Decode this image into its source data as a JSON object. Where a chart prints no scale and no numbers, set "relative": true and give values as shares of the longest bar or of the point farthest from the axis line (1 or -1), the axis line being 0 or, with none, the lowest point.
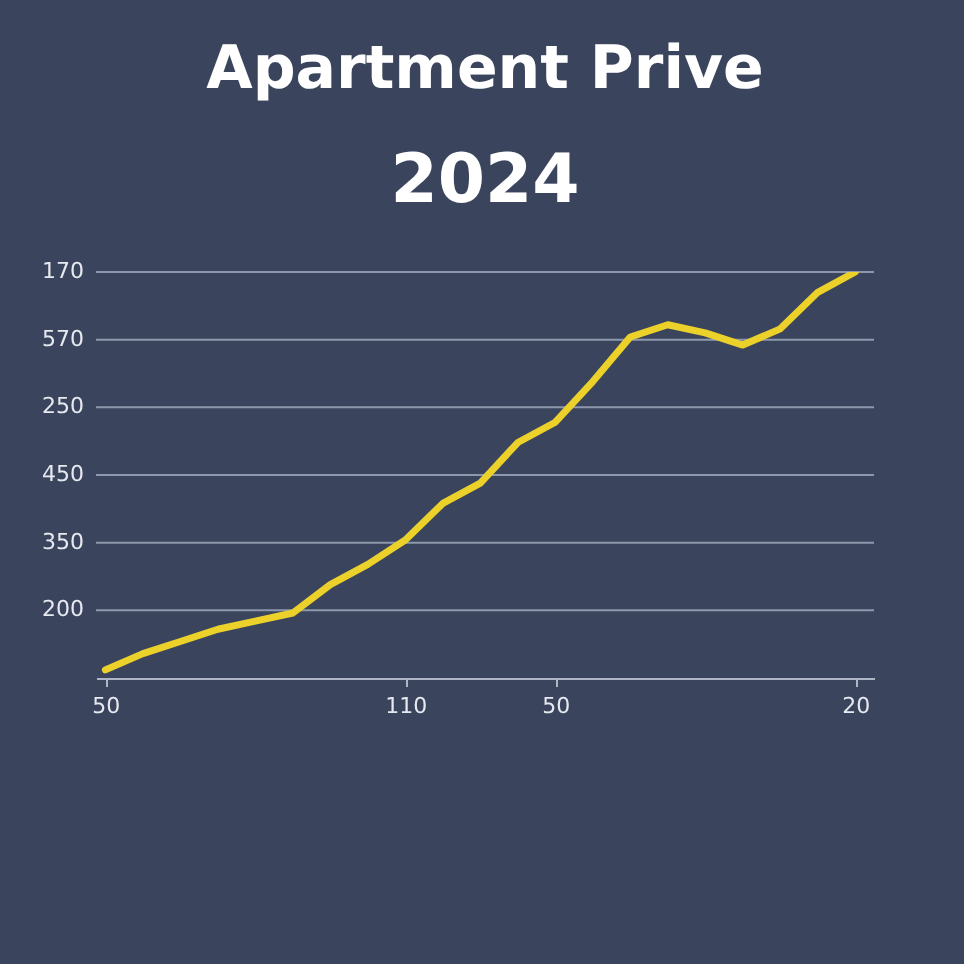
{
  "chart_data": {
    "type": "line",
    "title": "Apartment Prive",
    "subtitle": "2024",
    "relative": true,
    "categories": [
      "50",
      null,
      null,
      null,
      null,
      null,
      null,
      null,
      "110",
      null,
      null,
      null,
      "50",
      null,
      null,
      null,
      null,
      null,
      null,
      null,
      "20"
    ],
    "series": [
      {
        "color": "#ecd12a",
        "values": [
          0.02,
          0.06,
          0.09,
          0.12,
          0.14,
          0.16,
          0.23,
          0.28,
          0.34,
          0.43,
          0.48,
          0.58,
          0.63,
          0.73,
          0.84,
          0.87,
          0.85,
          0.82,
          0.86,
          0.95,
          1.0
        ]
      }
    ],
    "annotations": [
      "170",
      "570",
      "250",
      "450",
      "350",
      "200"
    ],
    "grid": "y",
    "marker": "none",
    "line_style": "solid"
  }
}
